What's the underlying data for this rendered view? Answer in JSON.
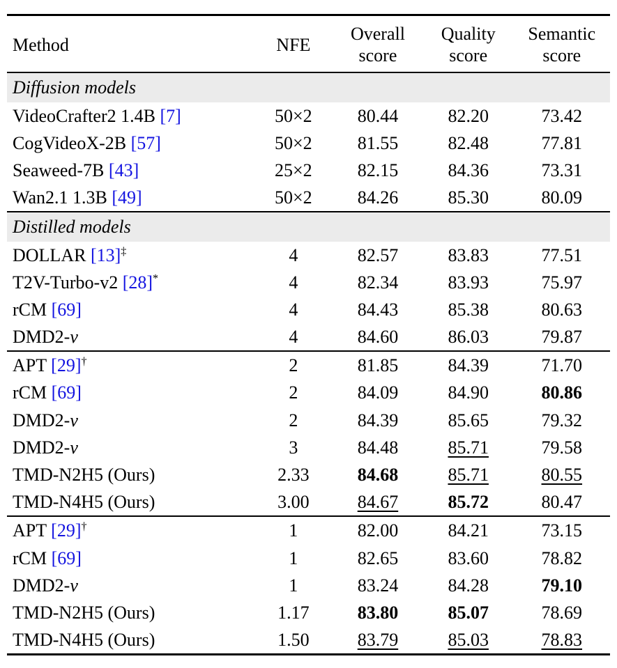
{
  "colors": {
    "citation": "#1414e0",
    "section_bg": "#ebebeb",
    "rule": "#000000",
    "background": "#ffffff"
  },
  "table": {
    "headers": [
      "Method",
      "NFE",
      "Overall\nscore",
      "Quality\nscore",
      "Semantic\nscore"
    ],
    "sections": [
      {
        "title": "Diffusion models",
        "groups": [
          [
            {
              "method": "VideoCrafter2 1.4B",
              "cite": "7",
              "nfe": "50×2",
              "scores": [
                {
                  "v": "80.44"
                },
                {
                  "v": "82.20"
                },
                {
                  "v": "73.42"
                }
              ]
            },
            {
              "method": "CogVideoX-2B",
              "cite": "57",
              "nfe": "50×2",
              "scores": [
                {
                  "v": "81.55"
                },
                {
                  "v": "82.48"
                },
                {
                  "v": "77.81"
                }
              ]
            },
            {
              "method": "Seaweed-7B",
              "cite": "43",
              "nfe": "25×2",
              "scores": [
                {
                  "v": "82.15"
                },
                {
                  "v": "84.36"
                },
                {
                  "v": "73.31"
                }
              ]
            },
            {
              "method": "Wan2.1 1.3B",
              "cite": "49",
              "nfe": "50×2",
              "scores": [
                {
                  "v": "84.26"
                },
                {
                  "v": "85.30"
                },
                {
                  "v": "80.09"
                }
              ]
            }
          ]
        ]
      },
      {
        "title": "Distilled models",
        "groups": [
          [
            {
              "method": "DOLLAR",
              "cite": "13",
              "marker": "‡",
              "nfe": "4",
              "scores": [
                {
                  "v": "82.57"
                },
                {
                  "v": "83.83"
                },
                {
                  "v": "77.51"
                }
              ]
            },
            {
              "method": "T2V-Turbo-v2",
              "cite": "28",
              "marker": "*",
              "nfe": "4",
              "scores": [
                {
                  "v": "82.34"
                },
                {
                  "v": "83.93"
                },
                {
                  "v": "75.97"
                }
              ]
            },
            {
              "method": "rCM",
              "cite": "69",
              "nfe": "4",
              "scores": [
                {
                  "v": "84.43"
                },
                {
                  "v": "85.38"
                },
                {
                  "v": "80.63"
                }
              ]
            },
            {
              "method": "DMD2-",
              "method_italic": "v",
              "nfe": "4",
              "scores": [
                {
                  "v": "84.60"
                },
                {
                  "v": "86.03"
                },
                {
                  "v": "79.87"
                }
              ]
            }
          ],
          [
            {
              "method": "APT",
              "cite": "29",
              "marker": "†",
              "nfe": "2",
              "scores": [
                {
                  "v": "81.85"
                },
                {
                  "v": "84.39"
                },
                {
                  "v": "71.70"
                }
              ]
            },
            {
              "method": "rCM",
              "cite": "69",
              "nfe": "2",
              "scores": [
                {
                  "v": "84.09"
                },
                {
                  "v": "84.90"
                },
                {
                  "v": "80.86",
                  "b": true
                }
              ]
            },
            {
              "method": "DMD2-",
              "method_italic": "v",
              "nfe": "2",
              "scores": [
                {
                  "v": "84.39"
                },
                {
                  "v": "85.65"
                },
                {
                  "v": "79.32"
                }
              ]
            },
            {
              "method": "DMD2-",
              "method_italic": "v",
              "nfe": "3",
              "scores": [
                {
                  "v": "84.48"
                },
                {
                  "v": "85.71",
                  "u": true
                },
                {
                  "v": "79.58"
                }
              ]
            },
            {
              "method": "TMD-N2H5 (Ours)",
              "nfe": "2.33",
              "scores": [
                {
                  "v": "84.68",
                  "b": true
                },
                {
                  "v": "85.71",
                  "u": true
                },
                {
                  "v": "80.55",
                  "u": true
                }
              ]
            },
            {
              "method": "TMD-N4H5 (Ours)",
              "nfe": "3.00",
              "scores": [
                {
                  "v": "84.67",
                  "u": true
                },
                {
                  "v": "85.72",
                  "b": true
                },
                {
                  "v": "80.47"
                }
              ]
            }
          ],
          [
            {
              "method": "APT",
              "cite": "29",
              "marker": "†",
              "nfe": "1",
              "scores": [
                {
                  "v": "82.00"
                },
                {
                  "v": "84.21"
                },
                {
                  "v": "73.15"
                }
              ]
            },
            {
              "method": "rCM",
              "cite": "69",
              "nfe": "1",
              "scores": [
                {
                  "v": "82.65"
                },
                {
                  "v": "83.60"
                },
                {
                  "v": "78.82"
                }
              ]
            },
            {
              "method": "DMD2-",
              "method_italic": "v",
              "nfe": "1",
              "scores": [
                {
                  "v": "83.24"
                },
                {
                  "v": "84.28"
                },
                {
                  "v": "79.10",
                  "b": true
                }
              ]
            },
            {
              "method": "TMD-N2H5 (Ours)",
              "nfe": "1.17",
              "scores": [
                {
                  "v": "83.80",
                  "b": true
                },
                {
                  "v": "85.07",
                  "b": true
                },
                {
                  "v": "78.69"
                }
              ]
            },
            {
              "method": "TMD-N4H5 (Ours)",
              "nfe": "1.50",
              "scores": [
                {
                  "v": "83.79",
                  "u": true
                },
                {
                  "v": "85.03",
                  "u": true
                },
                {
                  "v": "78.83",
                  "u": true
                }
              ]
            }
          ]
        ]
      }
    ]
  }
}
